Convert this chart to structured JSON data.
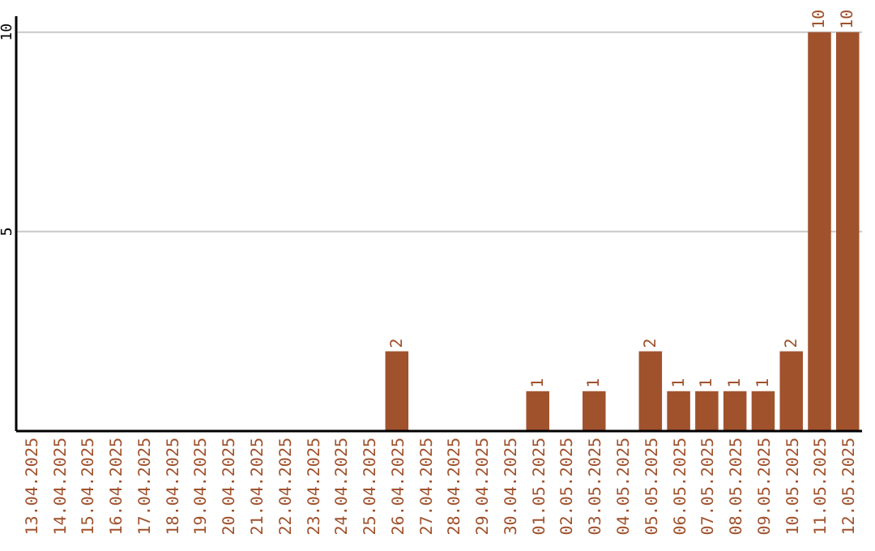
{
  "chart_data": {
    "type": "bar",
    "categories": [
      "13.04.2025",
      "14.04.2025",
      "15.04.2025",
      "16.04.2025",
      "17.04.2025",
      "18.04.2025",
      "19.04.2025",
      "20.04.2025",
      "21.04.2025",
      "22.04.2025",
      "23.04.2025",
      "24.04.2025",
      "25.04.2025",
      "26.04.2025",
      "27.04.2025",
      "28.04.2025",
      "29.04.2025",
      "30.04.2025",
      "01.05.2025",
      "02.05.2025",
      "03.05.2025",
      "04.05.2025",
      "05.05.2025",
      "06.05.2025",
      "07.05.2025",
      "08.05.2025",
      "09.05.2025",
      "10.05.2025",
      "11.05.2025",
      "12.05.2025"
    ],
    "values": [
      0,
      0,
      0,
      0,
      0,
      0,
      0,
      0,
      0,
      0,
      0,
      0,
      0,
      2,
      0,
      0,
      0,
      0,
      1,
      0,
      1,
      0,
      2,
      1,
      1,
      1,
      1,
      2,
      10,
      10
    ],
    "value_labels": [
      null,
      null,
      null,
      null,
      null,
      null,
      null,
      null,
      null,
      null,
      null,
      null,
      null,
      "2",
      null,
      null,
      null,
      null,
      "1",
      null,
      "1",
      null,
      "2",
      "1",
      "1",
      "1",
      "1",
      "2",
      "10",
      "10"
    ],
    "color": "#a0522d",
    "ylim": [
      0,
      10.4
    ],
    "yticks": [
      5,
      10
    ],
    "grid": "y"
  }
}
